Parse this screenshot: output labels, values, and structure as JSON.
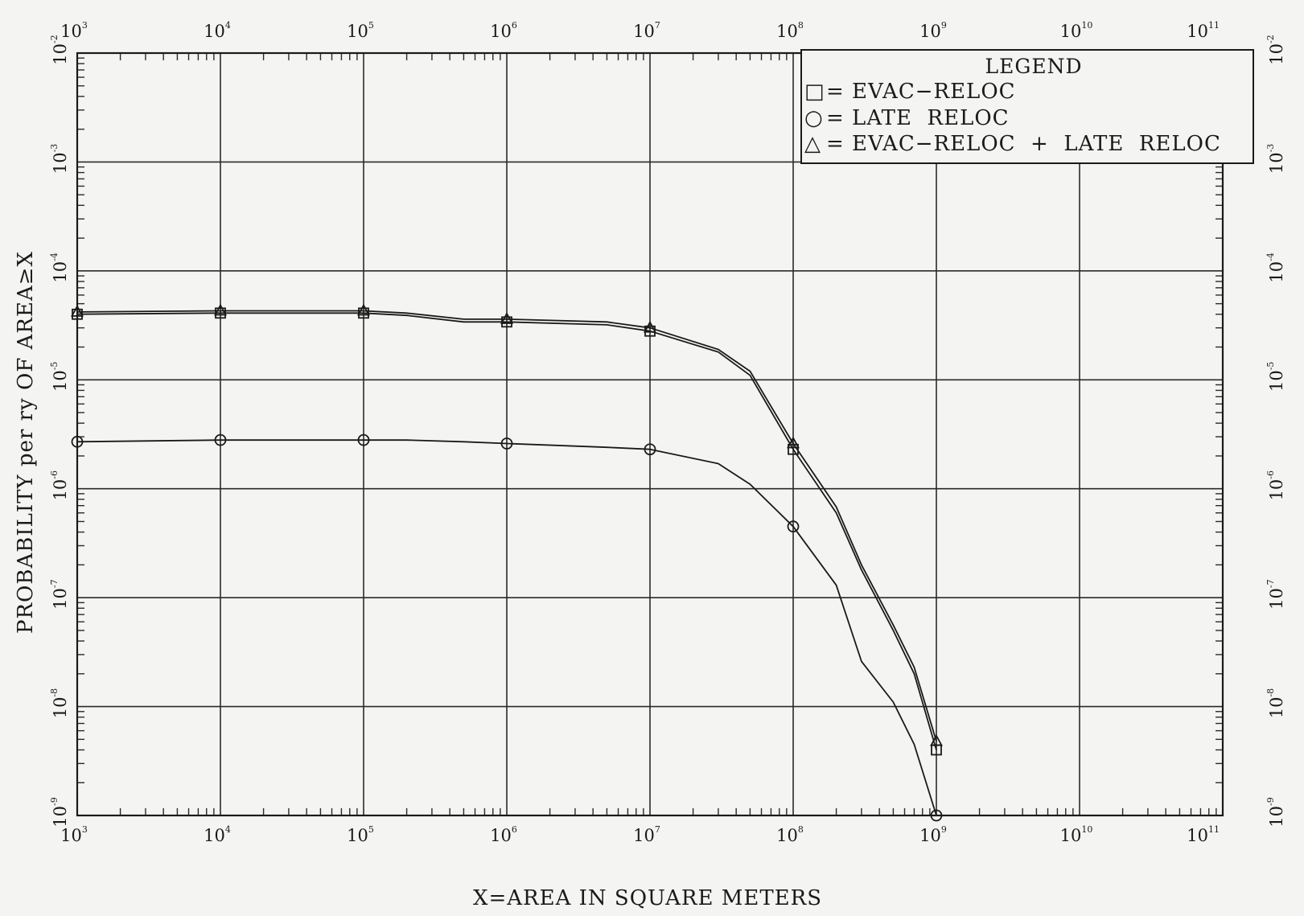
{
  "chart_data": {
    "type": "line",
    "title": "",
    "xlabel": "X=AREA IN SQUARE METERS",
    "ylabel": "PROBABILITY per ry OF AREA≥X",
    "x_scale": "log",
    "y_scale": "log",
    "xlim": [
      1000,
      100000000000
    ],
    "ylim": [
      1e-09,
      0.01
    ],
    "grid": true,
    "x_ticks": [
      {
        "value": 1000,
        "base": "10",
        "exp": "3"
      },
      {
        "value": 10000,
        "base": "10",
        "exp": "4"
      },
      {
        "value": 100000,
        "base": "10",
        "exp": "5"
      },
      {
        "value": 1000000,
        "base": "10",
        "exp": "6"
      },
      {
        "value": 10000000,
        "base": "10",
        "exp": "7"
      },
      {
        "value": 100000000,
        "base": "10",
        "exp": "8"
      },
      {
        "value": 1000000000,
        "base": "10",
        "exp": "9"
      },
      {
        "value": 10000000000,
        "base": "10",
        "exp": "10"
      },
      {
        "value": 100000000000,
        "base": "10",
        "exp": "11"
      }
    ],
    "y_ticks": [
      {
        "value": 0.01,
        "base": "10",
        "exp": "-2"
      },
      {
        "value": 0.001,
        "base": "10",
        "exp": "-3"
      },
      {
        "value": 0.0001,
        "base": "10",
        "exp": "-4"
      },
      {
        "value": 1e-05,
        "base": "10",
        "exp": "-5"
      },
      {
        "value": 1e-06,
        "base": "10",
        "exp": "-6"
      },
      {
        "value": 1e-07,
        "base": "10",
        "exp": "-7"
      },
      {
        "value": 1e-08,
        "base": "10",
        "exp": "-8"
      },
      {
        "value": 1e-09,
        "base": "10",
        "exp": "-9"
      }
    ],
    "legend": {
      "title": "LEGEND",
      "position": "top-right",
      "entries": [
        {
          "symbol": "□",
          "label": "= EVAC−RELOC"
        },
        {
          "symbol": "○",
          "label": "= LATE  RELOC"
        },
        {
          "symbol": "△",
          "label": "= EVAC−RELOC  +  LATE  RELOC"
        }
      ]
    },
    "series": [
      {
        "marker": "square",
        "x": [
          1000,
          10000,
          100000,
          200000,
          500000,
          1000000,
          5000000,
          10000000,
          30000000,
          50000000,
          100000000,
          200000000,
          300000000,
          500000000,
          700000000,
          1000000000
        ],
        "y": [
          4e-05,
          4.1e-05,
          4.1e-05,
          3.9e-05,
          3.4e-05,
          3.4e-05,
          3.2e-05,
          2.8e-05,
          1.8e-05,
          1.1e-05,
          2.3e-06,
          6e-07,
          1.8e-07,
          5e-08,
          2e-08,
          4e-09
        ],
        "marker_x": [
          1000,
          10000,
          100000,
          1000000,
          10000000,
          100000000,
          1000000000
        ]
      },
      {
        "marker": "circle",
        "x": [
          1000,
          10000,
          100000,
          200000,
          500000,
          1000000,
          5000000,
          10000000,
          30000000,
          50000000,
          100000000,
          200000000,
          300000000,
          500000000,
          700000000,
          1000000000
        ],
        "y": [
          2.7e-06,
          2.8e-06,
          2.8e-06,
          2.8e-06,
          2.7e-06,
          2.6e-06,
          2.4e-06,
          2.3e-06,
          1.7e-06,
          1.1e-06,
          4.5e-07,
          1.3e-07,
          2.6e-08,
          1.1e-08,
          4.5e-09,
          1e-09
        ],
        "marker_x": [
          1000,
          10000,
          100000,
          1000000,
          10000000,
          100000000,
          1000000000
        ]
      },
      {
        "marker": "triangle",
        "x": [
          1000,
          10000,
          100000,
          200000,
          500000,
          1000000,
          5000000,
          10000000,
          30000000,
          50000000,
          100000000,
          200000000,
          300000000,
          500000000,
          700000000,
          1000000000
        ],
        "y": [
          4.2e-05,
          4.3e-05,
          4.3e-05,
          4.1e-05,
          3.6e-05,
          3.6e-05,
          3.4e-05,
          3e-05,
          1.9e-05,
          1.2e-05,
          2.6e-06,
          6.8e-07,
          2e-07,
          5.6e-08,
          2.3e-08,
          4.8e-09
        ],
        "marker_x": [
          1000,
          10000,
          100000,
          1000000,
          10000000,
          100000000,
          1000000000
        ]
      }
    ]
  }
}
